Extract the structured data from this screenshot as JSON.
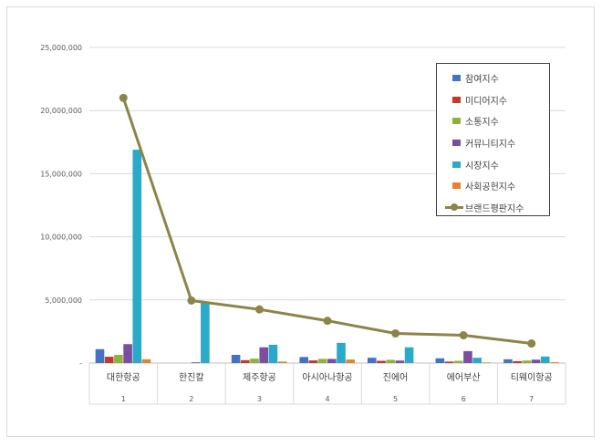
{
  "chart_data": {
    "type": "bar",
    "categories": [
      "대한항공",
      "한진칼",
      "제주항공",
      "아시아나항공",
      "진에어",
      "에어부산",
      "티웨이항공"
    ],
    "category_index": [
      "1",
      "2",
      "3",
      "4",
      "5",
      "6",
      "7"
    ],
    "ylim": [
      0,
      25000000
    ],
    "yticks": [
      "-",
      "5,000,000",
      "10,000,000",
      "15,000,000",
      "20,000,000",
      "25,000,000"
    ],
    "ytick_values": [
      0,
      5000000,
      10000000,
      15000000,
      20000000,
      25000000
    ],
    "grid": true,
    "legend_position": "top-right",
    "series": [
      {
        "name": "참여지수",
        "kind": "bar",
        "color": "#4472c4",
        "values": [
          1100000,
          0,
          650000,
          480000,
          420000,
          380000,
          300000
        ]
      },
      {
        "name": "미디어지수",
        "kind": "bar",
        "color": "#c0392b",
        "values": [
          500000,
          0,
          230000,
          210000,
          180000,
          120000,
          150000
        ]
      },
      {
        "name": "소통지수",
        "kind": "bar",
        "color": "#8db33a",
        "values": [
          650000,
          0,
          350000,
          330000,
          260000,
          180000,
          200000
        ]
      },
      {
        "name": "커뮤니티지수",
        "kind": "bar",
        "color": "#7a4fa0",
        "values": [
          1500000,
          60000,
          1250000,
          330000,
          200000,
          950000,
          270000
        ]
      },
      {
        "name": "시장지수",
        "kind": "bar",
        "color": "#2aa9c8",
        "values": [
          16900000,
          4800000,
          1450000,
          1600000,
          1250000,
          420000,
          520000
        ]
      },
      {
        "name": "사회공헌지수",
        "kind": "bar",
        "color": "#e8812c",
        "values": [
          300000,
          0,
          120000,
          280000,
          0,
          50000,
          70000
        ]
      },
      {
        "name": "브랜드평판지수",
        "kind": "line",
        "color": "#8c8448",
        "values": [
          21000000,
          4950000,
          4250000,
          3350000,
          2350000,
          2200000,
          1550000
        ]
      }
    ]
  }
}
